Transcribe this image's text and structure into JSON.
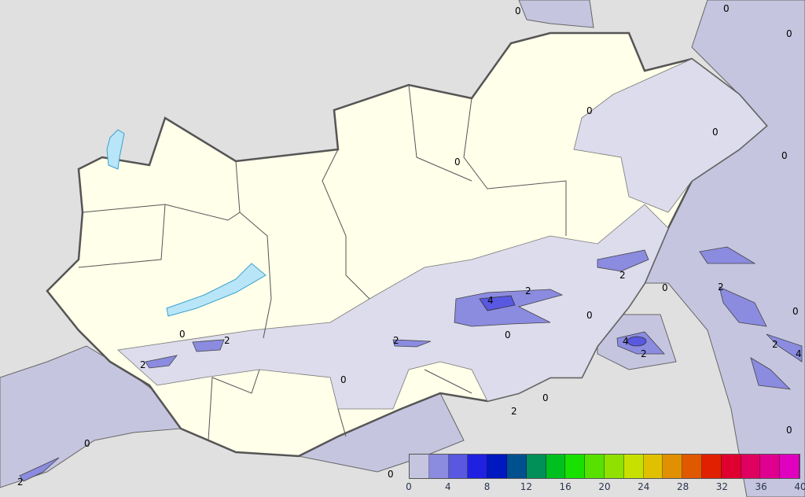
{
  "map": {
    "colors": {
      "background": "#e0e0e0",
      "country_fill": "#ffffea",
      "precip_0_2_inside": "#dcdcec",
      "precip_0_2_outside": "#c5c5e0",
      "precip_2_4": "#8b8be0",
      "precip_4_6": "#5858e0",
      "lake": "#b8e6f8",
      "border": "#555555"
    },
    "contour_labels": [
      "0",
      "0",
      "0",
      "0",
      "0",
      "0",
      "0",
      "0",
      "0",
      "0",
      "0",
      "0",
      "0",
      "0",
      "0",
      "2",
      "2",
      "2",
      "2",
      "2",
      "2",
      "2",
      "2",
      "2",
      "2",
      "4",
      "4",
      "4"
    ]
  },
  "legend": {
    "ticks": [
      "0",
      "4",
      "8",
      "12",
      "16",
      "20",
      "24",
      "28",
      "32",
      "36",
      "40"
    ],
    "min": 0,
    "max": 40,
    "step": 2,
    "colors": [
      "#c5c5e0",
      "#8b8be0",
      "#5858e0",
      "#2020e0",
      "#0018c0",
      "#005090",
      "#009058",
      "#00c020",
      "#18e000",
      "#58e000",
      "#90e000",
      "#c8e000",
      "#e0c000",
      "#e09000",
      "#e05800",
      "#e02000",
      "#e00030",
      "#e00060",
      "#e00090",
      "#e000c0"
    ]
  }
}
